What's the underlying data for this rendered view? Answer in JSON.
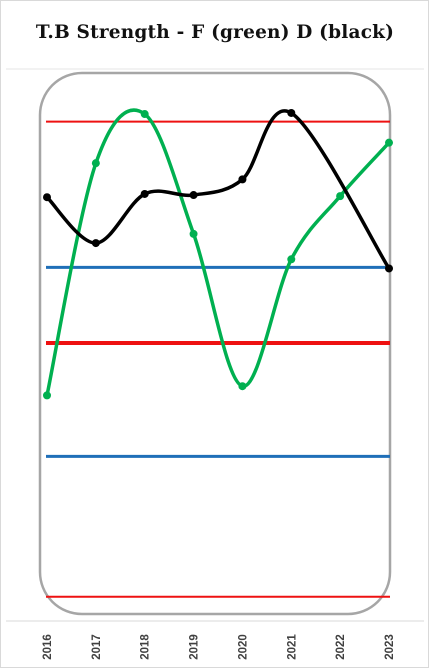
{
  "chart_data": {
    "type": "line",
    "title": "T.B Strength - F (green) D (black)",
    "categories": [
      "2016",
      "2017",
      "2018",
      "2019",
      "2020",
      "2021",
      "2022",
      "2023"
    ],
    "ylim": [
      0,
      100
    ],
    "grid": false,
    "legend": "none",
    "series": [
      {
        "color": "#00b050",
        "line_width": 3.5,
        "markers": true,
        "points": [
          {
            "x": "2016",
            "y": 40.3
          },
          {
            "x": "2017",
            "y": 83.3
          },
          {
            "x": "2018",
            "y": 92.4
          },
          {
            "x": "2019",
            "y": 70.2
          },
          {
            "x": "2020",
            "y": 42.0
          },
          {
            "x": "2021",
            "y": 65.5
          },
          {
            "x": "2022",
            "y": 77.2
          },
          {
            "x": "2023",
            "y": 87.1
          }
        ]
      },
      {
        "color": "#000000",
        "line_width": 3.5,
        "markers": true,
        "points": [
          {
            "x": "2016",
            "y": 77.0
          },
          {
            "x": "2017",
            "y": 68.5
          },
          {
            "x": "2018",
            "y": 77.6
          },
          {
            "x": "2019",
            "y": 77.4
          },
          {
            "x": "2020",
            "y": 80.3
          },
          {
            "x": "2021",
            "y": 92.6
          },
          {
            "x": "2022",
            "y": null
          },
          {
            "x": "2023",
            "y": 63.8
          }
        ]
      }
    ],
    "reference_lines": [
      {
        "y": 91.0,
        "color": "#ee1111",
        "width": 2
      },
      {
        "y": 64.0,
        "color": "#1f6fb8",
        "width": 3
      },
      {
        "y": 50.0,
        "color": "#ee1111",
        "width": 4
      },
      {
        "y": 29.0,
        "color": "#1f6fb8",
        "width": 3
      },
      {
        "y": 3.0,
        "color": "#ee1111",
        "width": 2
      }
    ]
  }
}
